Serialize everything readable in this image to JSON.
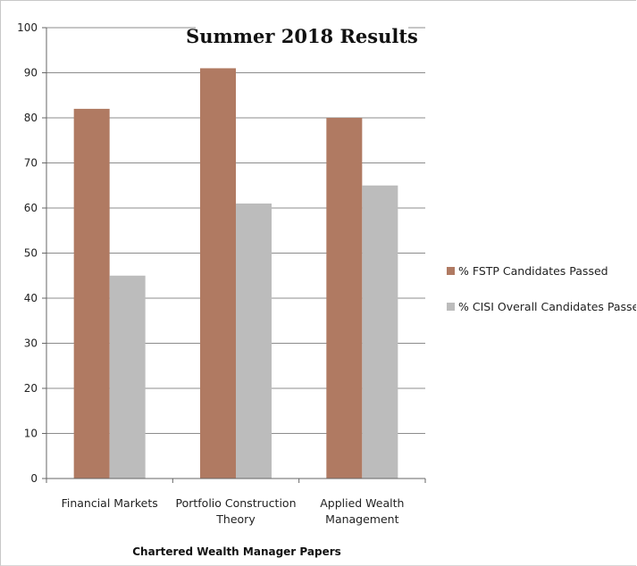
{
  "chart_data": {
    "type": "bar",
    "title": "Summer 2018 Results",
    "xlabel": "Chartered Wealth Manager Papers",
    "ylabel": "",
    "ylim": [
      0,
      100
    ],
    "yticks": [
      "0",
      "10",
      "20",
      "30",
      "40",
      "50",
      "60",
      "70",
      "80",
      "90",
      "100"
    ],
    "categories": [
      [
        "Financial Markets"
      ],
      [
        "Portfolio Construction",
        "Theory"
      ],
      [
        "Applied Wealth",
        "Management"
      ]
    ],
    "series": [
      {
        "name": "% FSTP Candidates Passed",
        "color": "#b07a62",
        "values": [
          82,
          91,
          80
        ]
      },
      {
        "name": "% CISI Overall Candidates Passed",
        "color": "#bcbcbc",
        "values": [
          45,
          61,
          65
        ]
      }
    ],
    "grid": true,
    "legend_position": "right"
  }
}
